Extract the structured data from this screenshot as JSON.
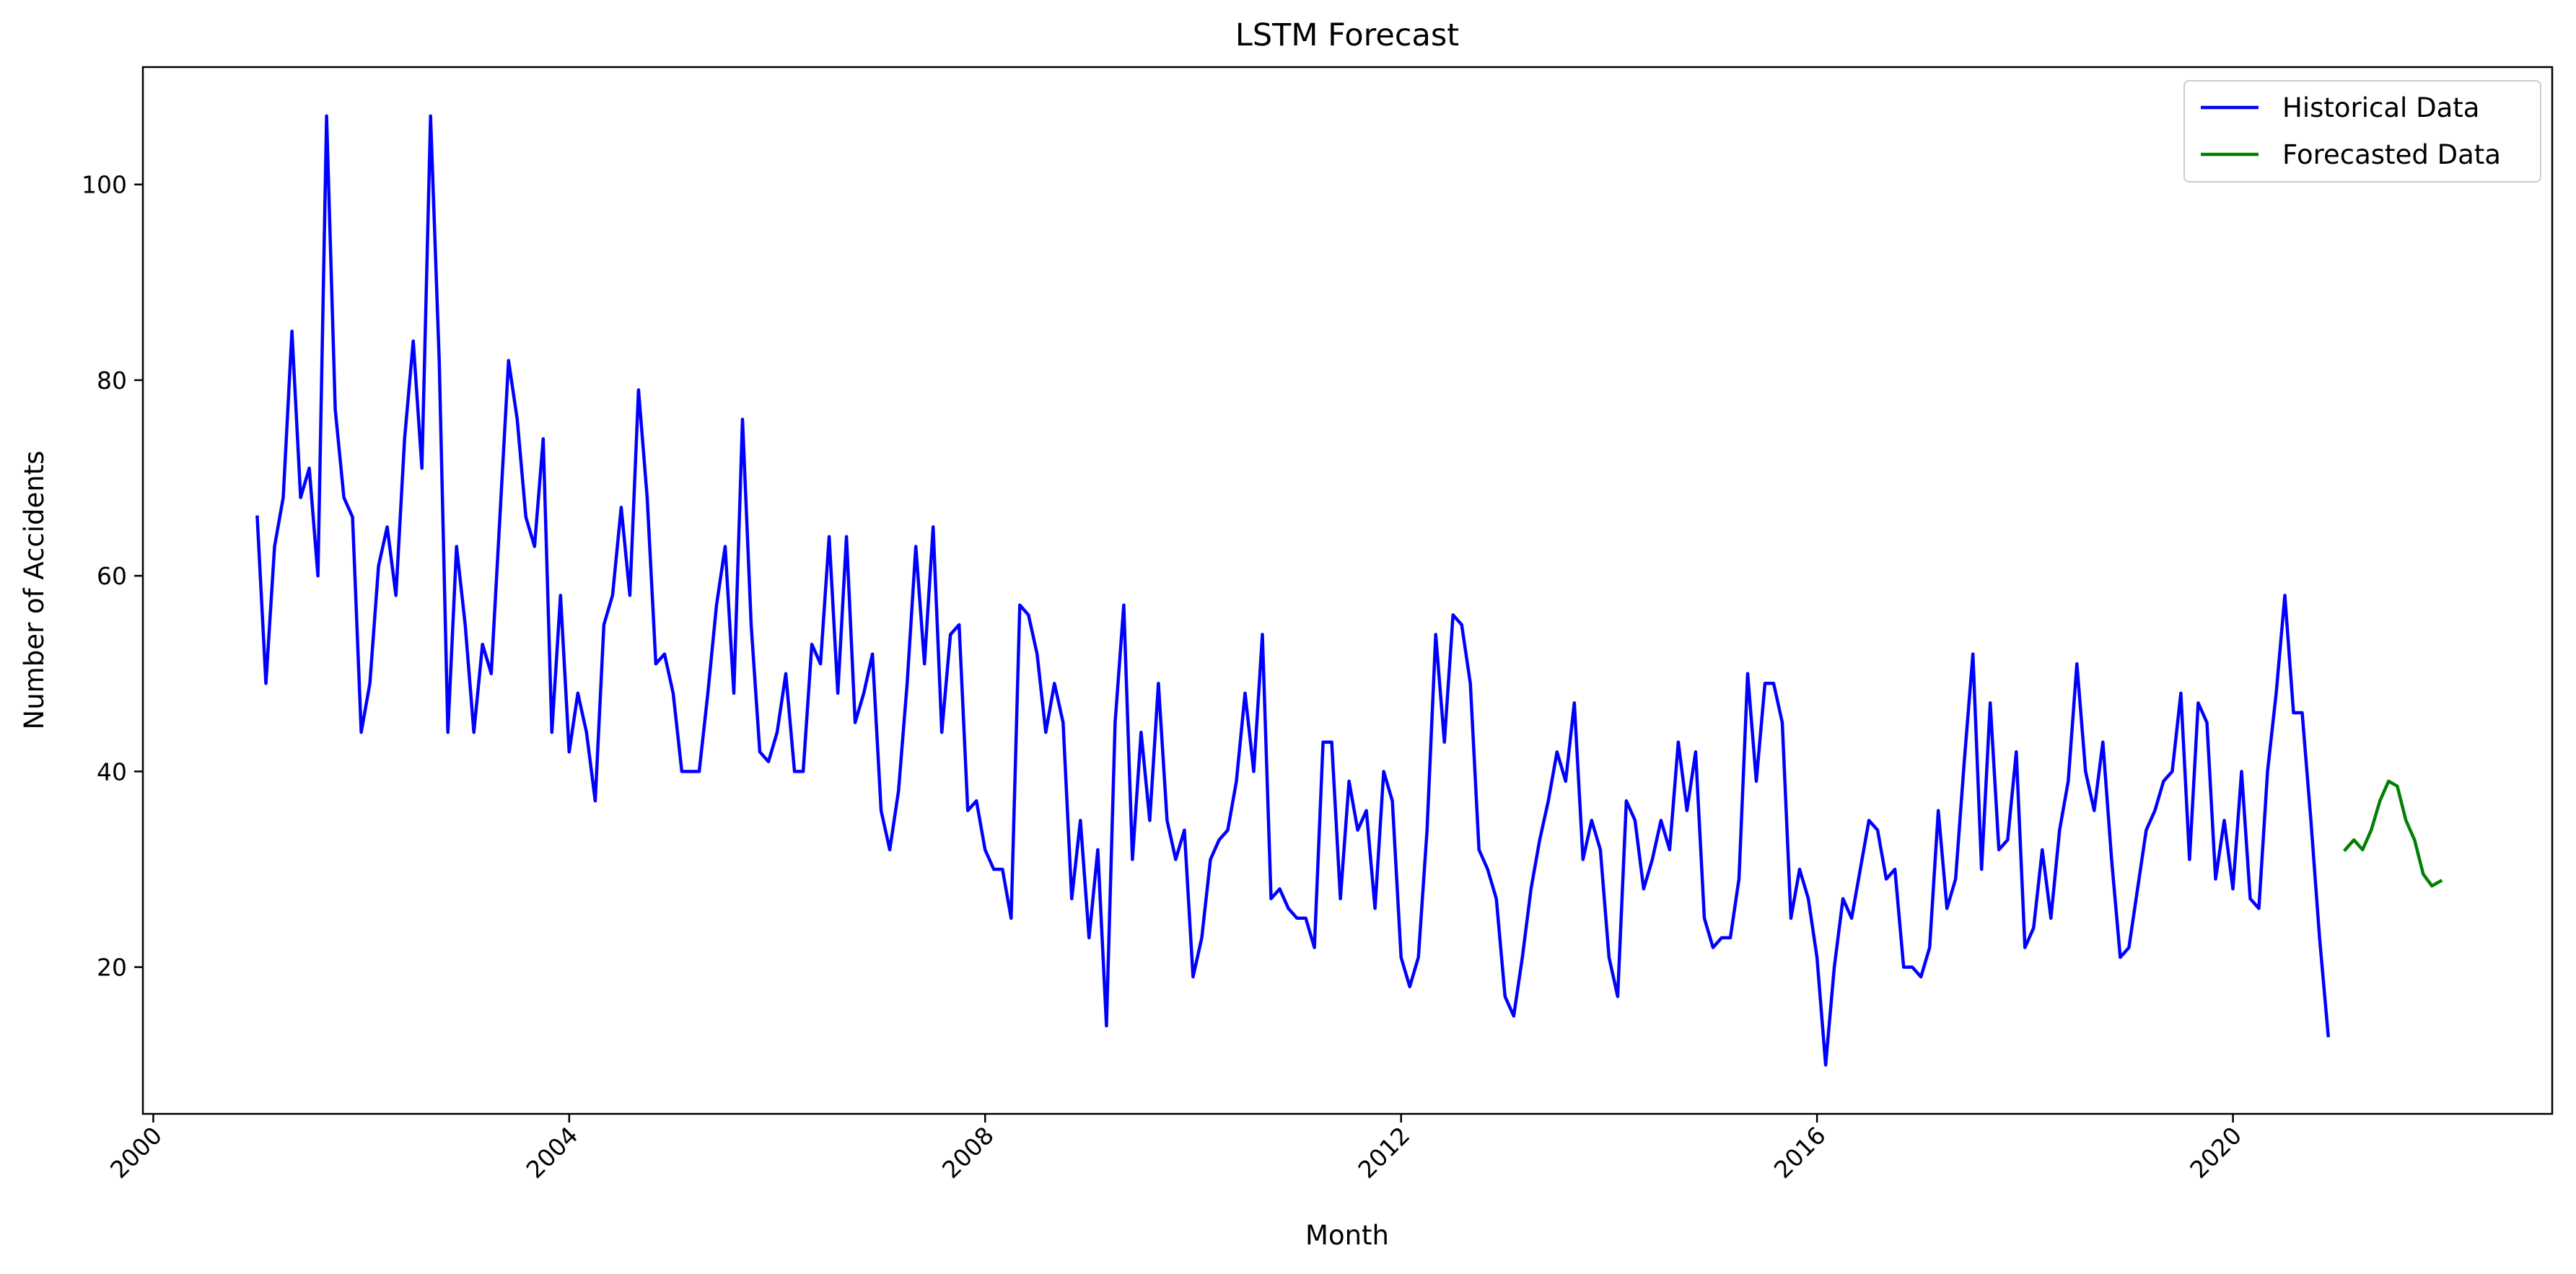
{
  "chart_data": {
    "type": "line",
    "title": "LSTM Forecast",
    "xlabel": "Month",
    "ylabel": "Number of Accidents",
    "xlim": [
      1999.9,
      2023.07
    ],
    "ylim": [
      5.0,
      112.0
    ],
    "x_ticks": [
      2000,
      2004,
      2008,
      2012,
      2016,
      2020
    ],
    "y_ticks": [
      20,
      40,
      60,
      80,
      100
    ],
    "x_tick_labels": [
      "2000",
      "2004",
      "2008",
      "2012",
      "2016",
      "2020"
    ],
    "y_tick_labels": [
      "20",
      "40",
      "60",
      "80",
      "100"
    ],
    "grid": false,
    "legend_position": "top-right",
    "series": [
      {
        "name": "Historical Data",
        "color": "#0000ff",
        "start": 2001.0,
        "step": 0.08333,
        "values": [
          66,
          49,
          63,
          68,
          85,
          68,
          71,
          60,
          107,
          77,
          68,
          66,
          44,
          49,
          61,
          65,
          58,
          74,
          84,
          71,
          107,
          82,
          44,
          63,
          55,
          44,
          53,
          50,
          66,
          82,
          76,
          66,
          63,
          74,
          44,
          58,
          42,
          48,
          44,
          37,
          55,
          58,
          67,
          58,
          79,
          68,
          51,
          52,
          48,
          40,
          40,
          40,
          48,
          57,
          63,
          48,
          76,
          55,
          42,
          41,
          44,
          50,
          40,
          40,
          53,
          51,
          64,
          48,
          64,
          45,
          48,
          52,
          36,
          32,
          38,
          49,
          63,
          51,
          65,
          44,
          54,
          55,
          36,
          37,
          32,
          30,
          30,
          25,
          57,
          56,
          52,
          44,
          49,
          45,
          27,
          35,
          23,
          32,
          14,
          45,
          57,
          31,
          44,
          35,
          49,
          35,
          31,
          34,
          19,
          23,
          31,
          33,
          34,
          39,
          48,
          40,
          54,
          27,
          28,
          26,
          25,
          25,
          22,
          43,
          43,
          27,
          39,
          34,
          36,
          26,
          40,
          37,
          21,
          18,
          21,
          34,
          54,
          43,
          56,
          55,
          49,
          32,
          30,
          27,
          17,
          15,
          21,
          28,
          33,
          37,
          42,
          39,
          47,
          31,
          35,
          32,
          21,
          17,
          37,
          35,
          28,
          31,
          35,
          32,
          43,
          36,
          42,
          25,
          22,
          23,
          23,
          29,
          50,
          39,
          49,
          49,
          45,
          25,
          30,
          27,
          21,
          10,
          20,
          27,
          25,
          30,
          35,
          34,
          29,
          30,
          20,
          20,
          19,
          22,
          36,
          26,
          29,
          41,
          52,
          30,
          47,
          32,
          33,
          42,
          22,
          24,
          32,
          25,
          34,
          39,
          51,
          40,
          36,
          43,
          31,
          21,
          22,
          28,
          34,
          36,
          39,
          40,
          48,
          31,
          47,
          45,
          29,
          35,
          28,
          40,
          27,
          26,
          40,
          48,
          58,
          46,
          46,
          35,
          23,
          13
        ]
      },
      {
        "name": "Forecasted Data",
        "color": "#008000",
        "start": 2021.08,
        "step": 0.08333,
        "values": [
          32,
          33,
          32,
          34,
          37,
          39,
          38.5,
          35,
          33,
          29.5,
          28.3,
          28.8
        ]
      }
    ]
  }
}
